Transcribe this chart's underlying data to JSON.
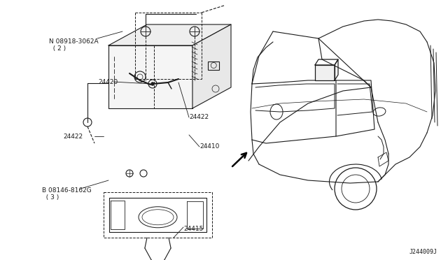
{
  "background_color": "#ffffff",
  "line_color": "#1a1a1a",
  "label_color": "#1a1a1a",
  "font_size": 6.5,
  "diagram_code": "J244009J",
  "part_labels": {
    "08918": "N 08918-3062A\n  ( 2 )",
    "24420": "24420",
    "24422_r": "24422",
    "24422_l": "24422",
    "24410": "24410",
    "08146": "B 08146-8162G\n  ( 3 )",
    "24415": "24415"
  }
}
